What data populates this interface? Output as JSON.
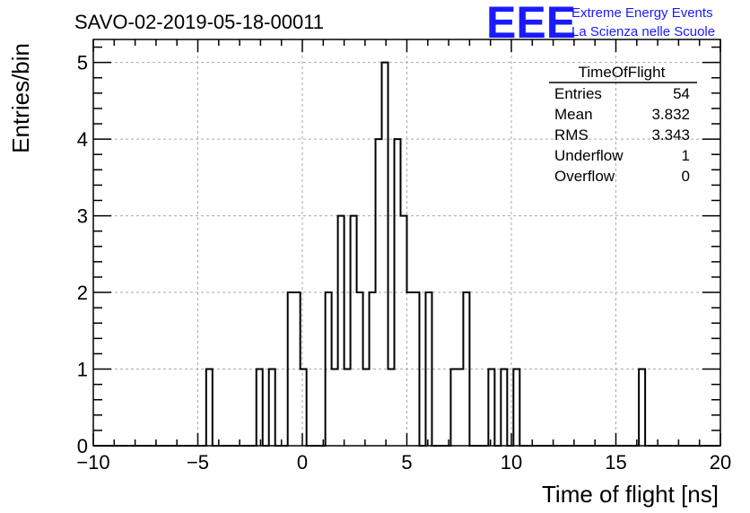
{
  "chart_data": {
    "type": "bar",
    "title": "SAVO-02-2019-05-18-00011",
    "xlabel": "Time of flight [ns]",
    "ylabel": "Entries/bin",
    "xlim": [
      -10,
      20
    ],
    "ylim": [
      0,
      5.3
    ],
    "grid": true,
    "x_ticks": [
      -10,
      -5,
      0,
      5,
      10,
      15,
      20
    ],
    "x_tick_labels": [
      "−10",
      "−5",
      "0",
      "5",
      "10",
      "15",
      "20"
    ],
    "y_ticks": [
      0,
      1,
      2,
      3,
      4,
      5
    ],
    "y_tick_labels": [
      "0",
      "1",
      "2",
      "3",
      "4",
      "5"
    ],
    "bin_edges_start": -10,
    "bin_width": 0.3,
    "bins": [
      {
        "x": -4.6,
        "value": 1
      },
      {
        "x": -2.2,
        "value": 1
      },
      {
        "x": -1.6,
        "value": 1
      },
      {
        "x": -0.7,
        "value": 2
      },
      {
        "x": -0.4,
        "value": 2
      },
      {
        "x": -0.1,
        "value": 1
      },
      {
        "x": 1.1,
        "value": 2
      },
      {
        "x": 1.4,
        "value": 1
      },
      {
        "x": 1.7,
        "value": 3
      },
      {
        "x": 2.0,
        "value": 1
      },
      {
        "x": 2.3,
        "value": 3
      },
      {
        "x": 2.6,
        "value": 2
      },
      {
        "x": 2.9,
        "value": 1
      },
      {
        "x": 3.2,
        "value": 2
      },
      {
        "x": 3.5,
        "value": 4
      },
      {
        "x": 3.8,
        "value": 5
      },
      {
        "x": 4.1,
        "value": 1
      },
      {
        "x": 4.4,
        "value": 4
      },
      {
        "x": 4.7,
        "value": 3
      },
      {
        "x": 5.0,
        "value": 2
      },
      {
        "x": 5.3,
        "value": 2
      },
      {
        "x": 5.9,
        "value": 2
      },
      {
        "x": 7.1,
        "value": 1
      },
      {
        "x": 7.4,
        "value": 1
      },
      {
        "x": 7.7,
        "value": 2
      },
      {
        "x": 8.9,
        "value": 1
      },
      {
        "x": 9.5,
        "value": 1
      },
      {
        "x": 10.1,
        "value": 1
      },
      {
        "x": 16.1,
        "value": 1
      }
    ],
    "stats_box": {
      "title": "TimeOfFlight",
      "rows": [
        {
          "label": "Entries",
          "value": "54"
        },
        {
          "label": "Mean",
          "value": "3.832"
        },
        {
          "label": "RMS",
          "value": "3.343"
        },
        {
          "label": "Underflow",
          "value": "1"
        },
        {
          "label": "Overflow",
          "value": "0"
        }
      ]
    }
  },
  "logo": {
    "mark": "EEE",
    "line1": "Extreme Energy Events",
    "line2": "La Scienza nelle Scuole",
    "color": "#1a1aff"
  }
}
